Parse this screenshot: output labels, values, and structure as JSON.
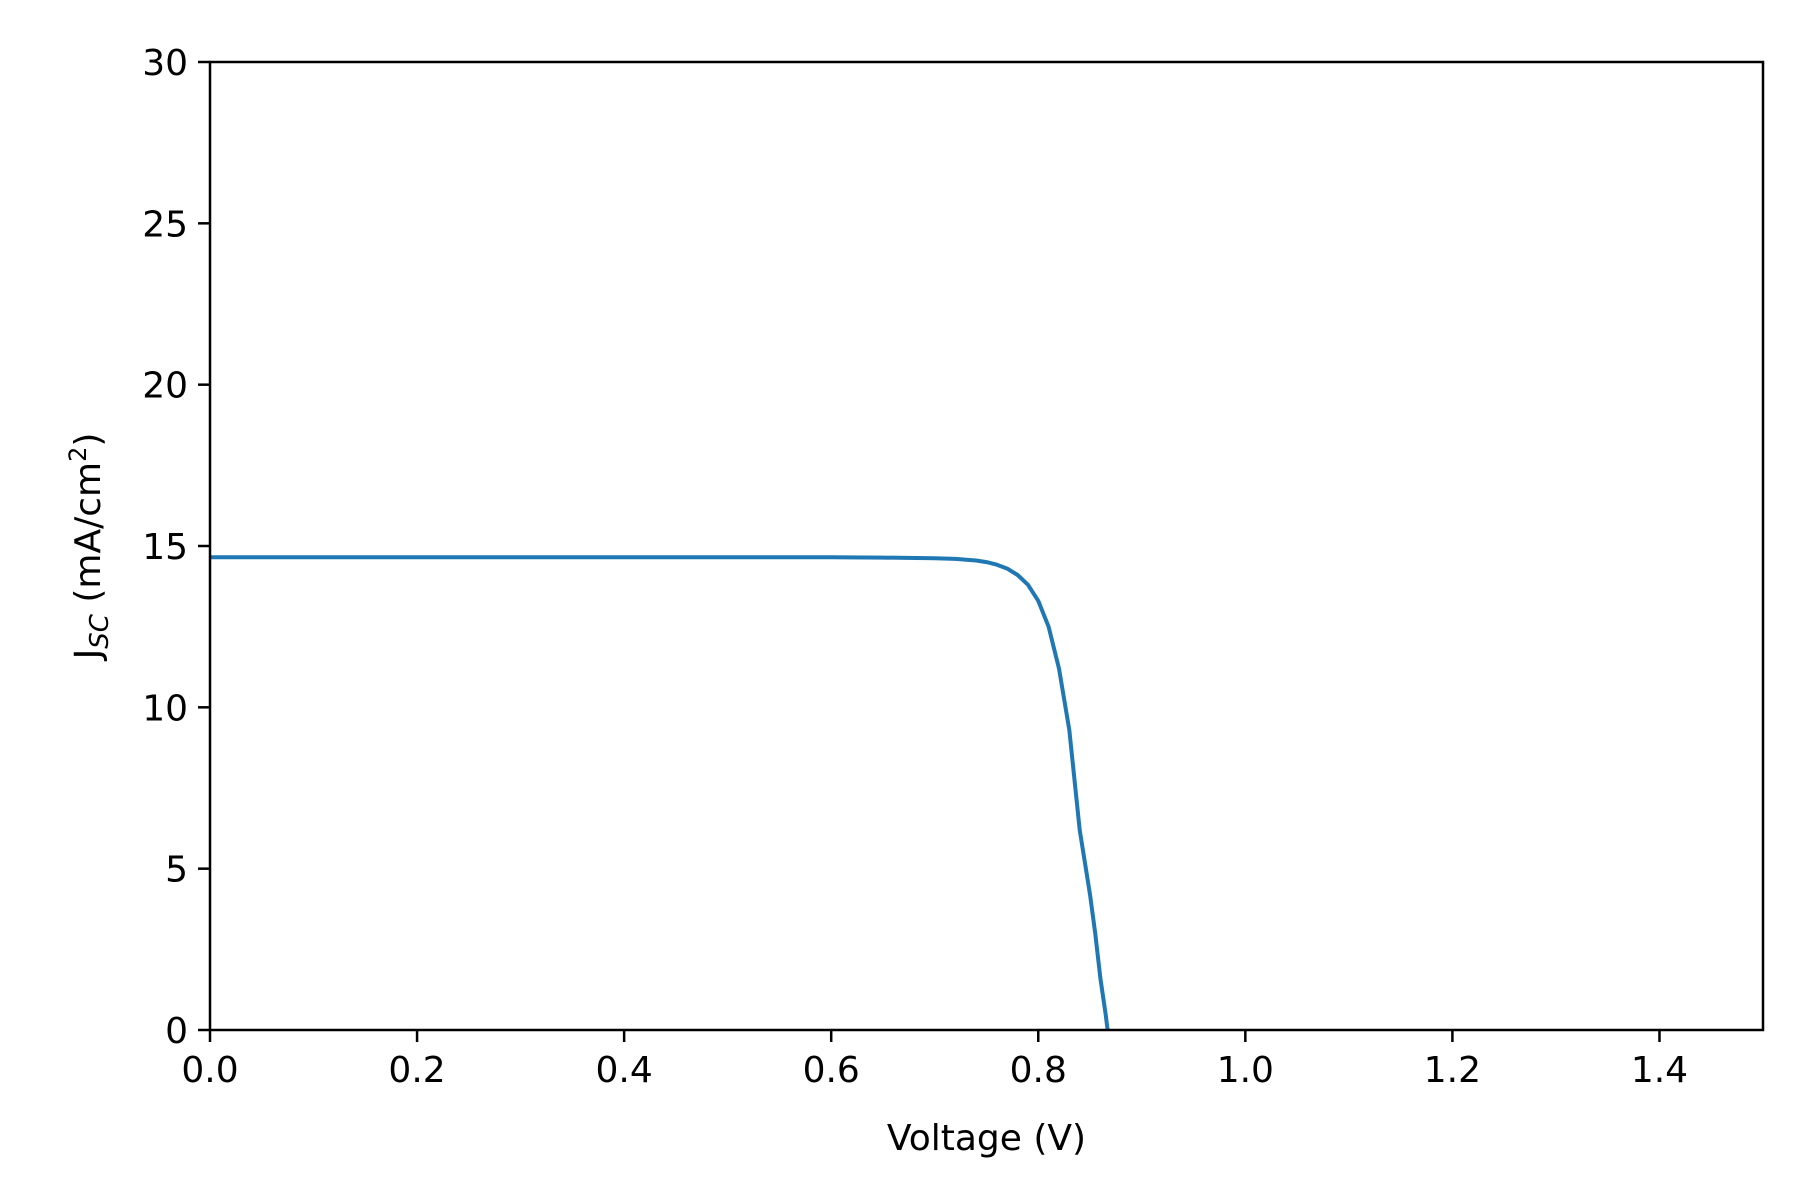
{
  "chart_data": {
    "type": "line",
    "xlabel": "Voltage (V)",
    "ylabel": {
      "main": "J",
      "subscript": "SC",
      "unit": " (mA/cm",
      "superscript": "2",
      "close": ")"
    },
    "xlim": [
      0.0,
      1.5
    ],
    "ylim": [
      0,
      30
    ],
    "xticks": [
      "0.0",
      "0.2",
      "0.4",
      "0.6",
      "0.8",
      "1.0",
      "1.2",
      "1.4"
    ],
    "xtick_values": [
      0.0,
      0.2,
      0.4,
      0.6,
      0.8,
      1.0,
      1.2,
      1.4
    ],
    "yticks": [
      "0",
      "5",
      "10",
      "15",
      "20",
      "25",
      "30"
    ],
    "ytick_values": [
      0,
      5,
      10,
      15,
      20,
      25,
      30
    ],
    "grid": false,
    "series": [
      {
        "color": "#1f77b4",
        "x": [
          0.0,
          0.1,
          0.2,
          0.3,
          0.4,
          0.5,
          0.6,
          0.65,
          0.7,
          0.72,
          0.74,
          0.75,
          0.76,
          0.77,
          0.78,
          0.79,
          0.8,
          0.81,
          0.82,
          0.83,
          0.84,
          0.85,
          0.855,
          0.86,
          0.865,
          0.867
        ],
        "y": [
          14.65,
          14.65,
          14.65,
          14.65,
          14.65,
          14.65,
          14.65,
          14.64,
          14.62,
          14.6,
          14.55,
          14.5,
          14.42,
          14.3,
          14.1,
          13.8,
          13.3,
          12.5,
          11.2,
          9.3,
          6.2,
          4.2,
          3.0,
          1.6,
          0.5,
          0.0
        ]
      }
    ]
  }
}
